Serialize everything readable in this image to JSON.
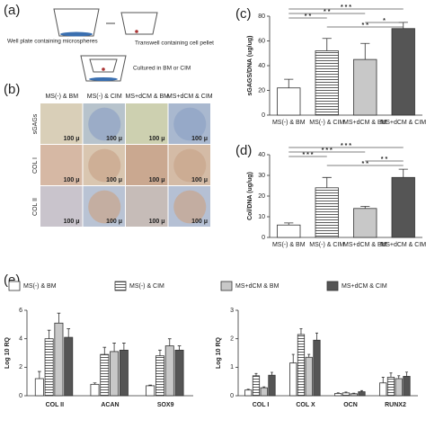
{
  "schematic": {
    "label": "(a)",
    "texts": [
      "Well plate containing microspheres",
      "Transwell containing cell pellet",
      "Cultured in BM or CIM"
    ]
  },
  "micrographs": {
    "label": "(b)",
    "columns": [
      "MS(-) & BM",
      "MS(-) & CIM",
      "MS+dCM & BM",
      "MS+dCM & CIM"
    ],
    "rows": [
      "sGAGs",
      "COL I",
      "COL II"
    ],
    "scale": "100 μ"
  },
  "chart_data": [
    {
      "type": "bar",
      "panel": "(c)",
      "ylabel": "sGAGS/DNA (ug/ug)",
      "categories": [
        "MS(-) & BM",
        "MS(-) & CIM",
        "MS+dCM & BM",
        "MS+dCM & CIM"
      ],
      "values": [
        22,
        52,
        45,
        70
      ],
      "errors": [
        7,
        10,
        13,
        5
      ],
      "colors": [
        "#ffffff",
        "#ffffff",
        "#c8c8c8",
        "#555555"
      ],
      "hatched": [
        false,
        true,
        false,
        false
      ],
      "ylim": [
        0,
        80
      ],
      "yticks": [
        0,
        20,
        40,
        60,
        80
      ],
      "significance": [
        {
          "pair": [
            0,
            1
          ],
          "label": "* *"
        },
        {
          "pair": [
            0,
            2
          ],
          "label": "* *"
        },
        {
          "pair": [
            0,
            3
          ],
          "label": "* * *"
        },
        {
          "pair": [
            1,
            3
          ],
          "label": "* *"
        },
        {
          "pair": [
            2,
            3
          ],
          "label": "*"
        }
      ]
    },
    {
      "type": "bar",
      "panel": "(d)",
      "ylabel": "Col/DNA (ug/ug)",
      "categories": [
        "MS(-) & BM",
        "MS(-) & CIM",
        "MS+dCM & BM",
        "MS+dCM & CIM"
      ],
      "values": [
        6,
        24,
        14,
        29
      ],
      "errors": [
        1,
        5,
        1,
        4
      ],
      "colors": [
        "#ffffff",
        "#ffffff",
        "#c8c8c8",
        "#555555"
      ],
      "hatched": [
        false,
        true,
        false,
        false
      ],
      "ylim": [
        0,
        40
      ],
      "yticks": [
        0,
        10,
        20,
        30,
        40
      ],
      "significance": [
        {
          "pair": [
            0,
            1
          ],
          "label": "* * *"
        },
        {
          "pair": [
            0,
            2
          ],
          "label": "* * *"
        },
        {
          "pair": [
            0,
            3
          ],
          "label": "* * *"
        },
        {
          "pair": [
            1,
            3
          ],
          "label": "* *"
        },
        {
          "pair": [
            2,
            3
          ],
          "label": "* *"
        }
      ]
    },
    {
      "type": "bar",
      "panel": "(e)",
      "ylabel": "Log 10 RQ",
      "categories": [
        "COL II",
        "ACAN",
        "SOX9"
      ],
      "series": [
        {
          "name": "MS(-) & BM",
          "color": "#ffffff",
          "hatched": false,
          "values": [
            1.2,
            0.8,
            0.7
          ],
          "errors": [
            0.5,
            0.1,
            0.05
          ]
        },
        {
          "name": "MS(-) & CIM",
          "color": "#ffffff",
          "hatched": true,
          "values": [
            4.0,
            2.9,
            2.8
          ],
          "errors": [
            0.6,
            0.5,
            0.4
          ]
        },
        {
          "name": "MS+dCM & BM",
          "color": "#c8c8c8",
          "hatched": false,
          "values": [
            5.1,
            3.1,
            3.5
          ],
          "errors": [
            0.7,
            0.6,
            0.5
          ]
        },
        {
          "name": "MS+dCM & CIM",
          "color": "#555555",
          "hatched": false,
          "values": [
            4.1,
            3.2,
            3.2
          ],
          "errors": [
            0.6,
            0.5,
            0.3
          ]
        }
      ],
      "ylim": [
        0,
        6
      ],
      "yticks": [
        0,
        2,
        4,
        6
      ]
    },
    {
      "type": "bar",
      "ylabel": "Log 10 RQ",
      "categories": [
        "COL I",
        "COL X",
        "OCN",
        "RUNX2"
      ],
      "series": [
        {
          "color": "#ffffff",
          "hatched": false,
          "values": [
            0.2,
            1.15,
            0.08,
            0.45
          ],
          "errors": [
            0.03,
            0.3,
            0.02,
            0.2
          ]
        },
        {
          "color": "#ffffff",
          "hatched": true,
          "values": [
            0.7,
            2.15,
            0.1,
            0.65
          ],
          "errors": [
            0.08,
            0.2,
            0.03,
            0.15
          ]
        },
        {
          "color": "#c8c8c8",
          "hatched": false,
          "values": [
            0.28,
            1.35,
            0.07,
            0.6
          ],
          "errors": [
            0.03,
            0.1,
            0.02,
            0.1
          ]
        },
        {
          "color": "#555555",
          "hatched": false,
          "values": [
            0.72,
            1.95,
            0.14,
            0.68
          ],
          "errors": [
            0.1,
            0.25,
            0.04,
            0.15
          ]
        }
      ],
      "ylim": [
        0,
        3
      ],
      "yticks": [
        0,
        1,
        2,
        3
      ]
    }
  ]
}
